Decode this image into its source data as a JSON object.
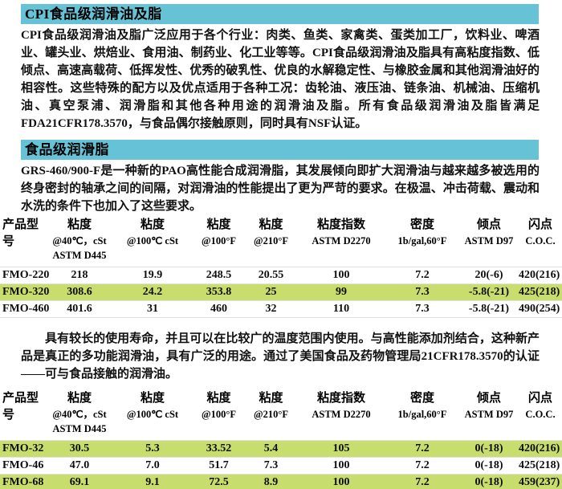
{
  "colors": {
    "section_band": "#66c2d5",
    "row_highlight": "#c7dd6d",
    "text": "#0d0d0d"
  },
  "section1": {
    "title": "CPI食品级润滑油及脂",
    "body": "CPI食品级润滑油及脂广泛应用于各个行业：肉类、鱼类、家禽类、蛋类加工厂，饮料业、啤酒业、罐头业、烘焙业、食用油、制药业、化工业等等。CPI食品级润滑油及脂具有高粘度指数、低倾点、高速高载荷、低挥发性、优秀的破乳性、优良的水解稳定性、与橡胶金属和其他润滑油好的相容性。这些特殊的配方以及优点适用于各种工况：齿轮油、液压油、链条油、机械油、压缩机油、真空泵浦、润滑脂和其他各种用途的润滑油及脂。所有食品级润滑油及脂皆满足FDA21CFR178.3570，与食品偶尔接触原则，同时具有NSF认证。"
  },
  "section2": {
    "title": "食品级润滑脂",
    "body": "GRS-460/900-F是一种新的PAO高性能合成润滑脂，其发展倾向即扩大润滑油与越来越多被选用的终身密封的轴承之间的间隔，对润滑油的性能提出了更为严苛的要求。在极温、冲击荷载、震动和水洗的条件下也加入了这些要求。"
  },
  "middle_paragraph": "具有较长的使用寿命，并且可以在比较广的温度范围内使用。与高性能添加剂结合，这种新产品是真正的多功能润滑油，具有广泛的用途。通过了美国食品及药物管理局21CFR178.3570的认证——可与食品接触的润滑油。",
  "columns": [
    {
      "l1": "产品型号",
      "l2": "",
      "l3": ""
    },
    {
      "l1": "粘度",
      "l2": "@40℃，cSt",
      "l3": "ASTM D445"
    },
    {
      "l1": "粘度",
      "l2": "@100℃ cSt",
      "l3": ""
    },
    {
      "l1": "粘度",
      "l2": "@100°F",
      "l3": ""
    },
    {
      "l1": "粘度",
      "l2": "@210°F",
      "l3": ""
    },
    {
      "l1": "粘度指数",
      "l2": "ASTM D2270",
      "l3": ""
    },
    {
      "l1": "密度",
      "l2": "1b/gal,60°F",
      "l3": ""
    },
    {
      "l1": "倾点",
      "l2": "ASTM D97",
      "l3": ""
    },
    {
      "l1": "闪点",
      "l2": "C.O.C.",
      "l3": ""
    }
  ],
  "table1": {
    "rows": [
      {
        "model": "FMO-220",
        "highlighted": false,
        "cells": [
          "218",
          "19.9",
          "248.5",
          "20.55",
          "100",
          "7.2",
          "20(-6)",
          "420(216)"
        ]
      },
      {
        "model": "FMO-320",
        "highlighted": true,
        "cells": [
          "308.6",
          "24.2",
          "353.8",
          "25",
          "99",
          "7.3",
          "-5.8(-21)",
          "425(218)"
        ]
      },
      {
        "model": "FMO-460",
        "highlighted": false,
        "cells": [
          "401.6",
          "31",
          "460",
          "32",
          "110",
          "7.3",
          "-5.8(-21)",
          "490(254)"
        ]
      }
    ]
  },
  "table2": {
    "rows": [
      {
        "model": "FMO-32",
        "highlighted": true,
        "cells": [
          "30.5",
          "5.3",
          "33.52",
          "5.4",
          "105",
          "7.2",
          "0(-18)",
          "420(216)"
        ]
      },
      {
        "model": "FMO-46",
        "highlighted": false,
        "cells": [
          "47.0",
          "7.0",
          "51.7",
          "7.3",
          "100",
          "7.2",
          "0(-18)",
          "425(218)"
        ]
      },
      {
        "model": "FMO-68",
        "highlighted": true,
        "cells": [
          "69.1",
          "9.1",
          "72.5",
          "8.9",
          "100",
          "7.2",
          "0(-18)",
          "459(237)"
        ]
      }
    ]
  }
}
